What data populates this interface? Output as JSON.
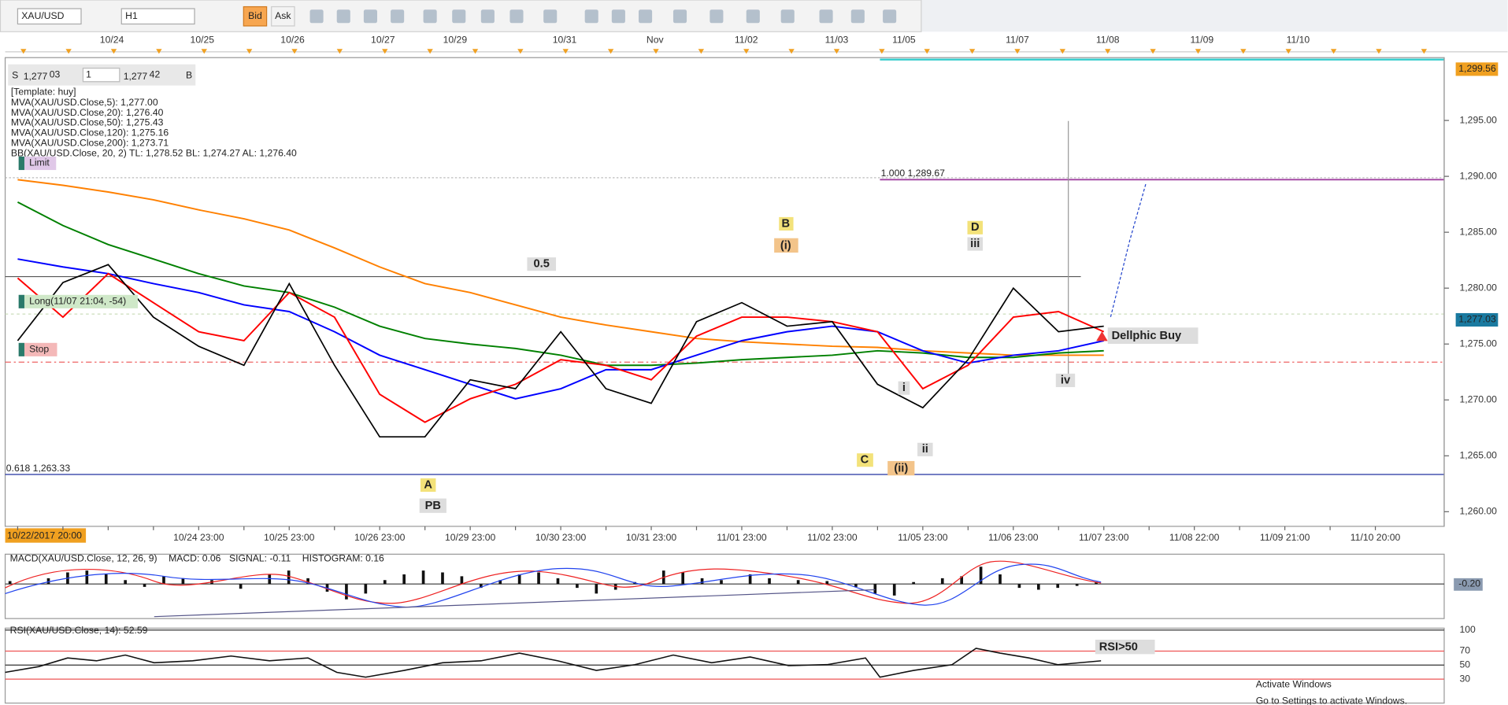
{
  "toolbar": {
    "symbol": "XAU/USD",
    "timeframe": "H1",
    "bid": "Bid",
    "ask": "Ask"
  },
  "top_dates": [
    "10/24",
    "10/25",
    "10/26",
    "10/27",
    "10/29",
    "10/31",
    "Nov",
    "11/02",
    "11/03",
    "11/05",
    "11/07",
    "11/08",
    "11/09",
    "11/10"
  ],
  "quote": {
    "side_s": "S",
    "bid_big": "1,277",
    "bid_small": "03",
    "lot": "1",
    "ask_big": "1,277",
    "ask_small": "42",
    "side_b": "B"
  },
  "legend": {
    "template": "[Template: huy]",
    "bb": "BB(XAU/USD.Close, 20, 2)  TL: 1,278.52  BL: 1,274.27  AL: 1,276.40"
  },
  "orders": {
    "limit": "Limit",
    "long": "Long(11/07 21:04, -54)",
    "stop": "Stop"
  },
  "annotations": {
    "fib_100": "1.000 1,289.67",
    "fib_618": "0.618 1,263.33",
    "half": "0.5",
    "B": "B",
    "i_paren": "(i)",
    "D": "D",
    "iii": "iii",
    "A": "A",
    "PB": "PB",
    "C": "C",
    "ii_paren": "(ii)",
    "i": "i",
    "ii": "ii",
    "iv": "iv",
    "signal": "Dellphic Buy"
  },
  "price_flags": {
    "top": "1,299.56",
    "current": "1,277.03"
  },
  "cursor_date": "10/22/2017 20:00",
  "chart_data": {
    "type": "line",
    "ylim": [
      1258.69,
      1300.62
    ],
    "yticks": [
      {
        "value": 1295,
        "label": "1,295.00"
      },
      {
        "value": 1290,
        "label": "1,290.00"
      },
      {
        "value": 1285,
        "label": "1,285.00"
      },
      {
        "value": 1280,
        "label": "1,280.00"
      },
      {
        "value": 1275,
        "label": "1,275.00"
      },
      {
        "value": 1270,
        "label": "1,270.00"
      },
      {
        "value": 1265,
        "label": "1,265.00"
      },
      {
        "value": 1260,
        "label": "1,260.00"
      }
    ],
    "categories": [
      null,
      null,
      null,
      null,
      "10/24 23:00",
      null,
      "10/25 23:00",
      null,
      "10/26 23:00",
      null,
      "10/29 23:00",
      null,
      "10/30 23:00",
      null,
      "10/31 23:00",
      null,
      "11/01 23:00",
      null,
      "11/02 23:00",
      null,
      "11/05 23:00",
      null,
      "11/06 23:00",
      null,
      "11/07 23:00",
      null,
      "11/08 22:00",
      null,
      "11/09 21:00",
      null,
      "11/10 20:00"
    ],
    "series": [
      {
        "name": "MVA(XAU/USD.Close,200): 1,273.71",
        "color": "#ff8000",
        "values": [
          1289.7,
          1289.2,
          1288.6,
          1287.9,
          1287.0,
          1286.2,
          1285.2,
          1283.6,
          1281.9,
          1280.4,
          1279.6,
          1278.5,
          1277.4,
          1276.7,
          1276.1,
          1275.5,
          1275.2,
          1275.0,
          1274.8,
          1274.7,
          1274.4,
          1274.2,
          1274.0,
          1274.0,
          1274.0,
          null,
          null,
          null,
          null,
          null,
          null
        ]
      },
      {
        "name": "MVA(XAU/USD.Close,120): 1,275.16",
        "color": "#008000",
        "values": [
          1287.7,
          1285.6,
          1283.9,
          1282.6,
          1281.3,
          1280.2,
          1279.6,
          1278.3,
          1276.6,
          1275.5,
          1275.0,
          1274.6,
          1274.0,
          1273.1,
          1273.1,
          1273.3,
          1273.6,
          1273.8,
          1274.0,
          1274.4,
          1274.2,
          1273.8,
          1273.8,
          1274.2,
          1274.4,
          null,
          null,
          null,
          null,
          null,
          null
        ]
      },
      {
        "name": "MVA(XAU/USD.Close,50): 1,275.43",
        "color": "#0000ff",
        "values": [
          1282.6,
          1281.9,
          1281.3,
          1280.4,
          1279.6,
          1278.5,
          1277.9,
          1276.1,
          1274.0,
          1272.7,
          1271.4,
          1270.1,
          1271.0,
          1272.7,
          1272.7,
          1274.0,
          1275.3,
          1276.1,
          1276.6,
          1276.1,
          1274.4,
          1273.3,
          1274.0,
          1274.4,
          1275.3,
          null,
          null,
          null,
          null,
          null,
          null
        ]
      },
      {
        "name": "MVA(XAU/USD.Close,20): 1,276.40",
        "color": "#ff0000",
        "values": [
          1280.9,
          1277.4,
          1281.3,
          1278.7,
          1276.1,
          1275.3,
          1279.6,
          1277.4,
          1270.5,
          1268.0,
          1270.1,
          1271.4,
          1273.6,
          1273.1,
          1271.8,
          1275.7,
          1277.4,
          1277.4,
          1277.0,
          1276.1,
          1271.0,
          1273.1,
          1277.4,
          1277.9,
          1276.1,
          null,
          null,
          null,
          null,
          null,
          null
        ]
      },
      {
        "name": "MVA(XAU/USD.Close,5): 1,277.00",
        "color": "#000000",
        "values": [
          1275.3,
          1280.5,
          1282.1,
          1277.4,
          1274.8,
          1273.1,
          1280.4,
          1273.1,
          1266.7,
          1266.7,
          1271.8,
          1271.0,
          1276.1,
          1271.0,
          1269.7,
          1277.0,
          1278.7,
          1276.6,
          1277.0,
          1271.4,
          1269.3,
          1273.6,
          1280.0,
          1276.1,
          1276.6,
          null,
          null,
          null,
          null,
          null,
          null
        ]
      }
    ]
  },
  "macd": {
    "title": "MACD(XAU/USD.Close, 12, 26, 9)",
    "macd": "MACD: 0.06",
    "signal": "SIGNAL: -0.11",
    "histogram": "HISTOGRAM: 0.16",
    "axis": {
      "value": -0.2,
      "label": "-0.20"
    }
  },
  "rsi": {
    "title": "RSI(XAU/USD.Close, 14): 52.59",
    "levels": [
      100,
      70,
      50,
      30
    ],
    "note": "RSI>50"
  },
  "watermark": {
    "title": "Activate Windows",
    "sub": "Go to Settings to activate Windows."
  }
}
